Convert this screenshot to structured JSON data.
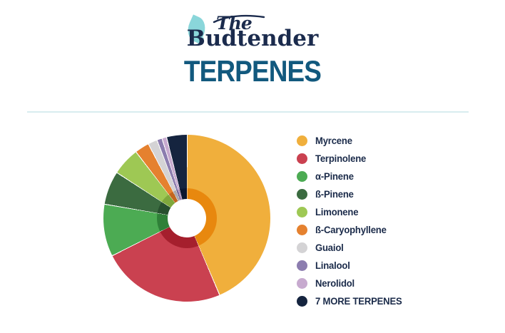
{
  "logo": {
    "the": "The",
    "name": "Budtender",
    "leaf_color": "#8AD6DA",
    "text_color": "#1B2B4D"
  },
  "title": {
    "text": "TERPENES",
    "color": "#12597E"
  },
  "divider_color": "#D8ECEF",
  "legend_text_color": "#1B2B4A",
  "chart_data": {
    "type": "pie",
    "style": "donut-double-ring",
    "title": "TERPENES",
    "start_angle_deg": 0,
    "direction": "clockwise",
    "legend_position": "right",
    "hole_color": "#ffffff",
    "slices": [
      {
        "label": "Myrcene",
        "percent": 43.5,
        "color": "#F0AF3C",
        "inner_color": "#E8880E"
      },
      {
        "label": "Terpinolene",
        "percent": 24.0,
        "color": "#CA4150",
        "inner_color": "#A51F2D"
      },
      {
        "label": "α-Pinene",
        "percent": 10.1,
        "color": "#4CAB53",
        "inner_color": "#2F8038"
      },
      {
        "label": "ß-Pinene",
        "percent": 6.5,
        "color": "#3B6B40",
        "inner_color": "#27502E"
      },
      {
        "label": "Limonene",
        "percent": 5.4,
        "color": "#9EC854",
        "inner_color": "#7FA83C"
      },
      {
        "label": "ß-Caryophyllene",
        "percent": 2.8,
        "color": "#E5812F",
        "inner_color": "#C2661F"
      },
      {
        "label": "Guaiol",
        "percent": 1.8,
        "color": "#D4D3D5",
        "inner_color": "#ABA9AE"
      },
      {
        "label": "Linalool",
        "percent": 1.0,
        "color": "#8C7DAF",
        "inner_color": "#6F5F96"
      },
      {
        "label": "Nerolidol",
        "percent": 0.9,
        "color": "#C7AACF",
        "inner_color": "#A987B4"
      },
      {
        "label": "7 MORE TERPENES",
        "percent": 4.0,
        "color": "#15243F",
        "inner_color": "#0C1730"
      }
    ]
  }
}
